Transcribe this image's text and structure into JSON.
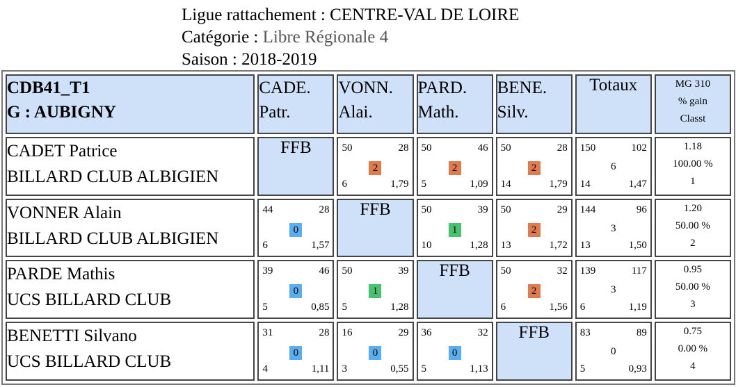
{
  "header": {
    "ligue_label": "Ligue rattachement : ",
    "ligue_value": "CENTRE-VAL DE LOIRE",
    "categorie_label": "Catégorie : ",
    "categorie_value": "Libre Régionale 4",
    "saison_label": "Saison : ",
    "saison_value": "2018-2019"
  },
  "table": {
    "title_line1": "CDB41_T1",
    "title_line2": "G : AUBIGNY",
    "opponents": [
      {
        "l1": "CADE.",
        "l2": "Patr."
      },
      {
        "l1": "VONN.",
        "l2": "Alai."
      },
      {
        "l1": "PARD.",
        "l2": "Math."
      },
      {
        "l1": "BENE.",
        "l2": "Silv."
      }
    ],
    "totals_label": "Totaux",
    "mg_label": [
      "MG 310",
      "% gain",
      "Classt"
    ],
    "ffb_label": "FFB",
    "colors": {
      "win": "#47c36f",
      "loss": "#e07b4e",
      "draw": "#5aaef0",
      "cell_blue": "#cfe0f9"
    },
    "rows": [
      {
        "name": "CADET Patrice",
        "club": "BILLARD CLUB ALBIGIEN",
        "matches": [
          null,
          {
            "tl": "50",
            "tr": "28",
            "pts": "2",
            "color": "#e07b4e",
            "bl": "6",
            "br": "1,79"
          },
          {
            "tl": "50",
            "tr": "46",
            "pts": "2",
            "color": "#e07b4e",
            "bl": "5",
            "br": "1,09"
          },
          {
            "tl": "50",
            "tr": "28",
            "pts": "2",
            "color": "#e07b4e",
            "bl": "14",
            "br": "1,79"
          }
        ],
        "totals": {
          "tl": "150",
          "tr": "102",
          "mid": "6",
          "bl": "14",
          "br": "1,47"
        },
        "mg": [
          "1.18",
          "100.00 %",
          "1"
        ]
      },
      {
        "name": "VONNER Alain",
        "club": "BILLARD CLUB ALBIGIEN",
        "matches": [
          {
            "tl": "44",
            "tr": "28",
            "pts": "0",
            "color": "#5aaef0",
            "bl": "6",
            "br": "1,57"
          },
          null,
          {
            "tl": "50",
            "tr": "39",
            "pts": "1",
            "color": "#47c36f",
            "bl": "10",
            "br": "1,28"
          },
          {
            "tl": "50",
            "tr": "29",
            "pts": "2",
            "color": "#e07b4e",
            "bl": "13",
            "br": "1,72"
          }
        ],
        "totals": {
          "tl": "144",
          "tr": "96",
          "mid": "3",
          "bl": "13",
          "br": "1,50"
        },
        "mg": [
          "1.20",
          "50.00 %",
          "2"
        ]
      },
      {
        "name": "PARDE Mathis",
        "club": "UCS BILLARD CLUB",
        "matches": [
          {
            "tl": "39",
            "tr": "46",
            "pts": "0",
            "color": "#5aaef0",
            "bl": "5",
            "br": "0,85"
          },
          {
            "tl": "50",
            "tr": "39",
            "pts": "1",
            "color": "#47c36f",
            "bl": "5",
            "br": "1,28"
          },
          null,
          {
            "tl": "50",
            "tr": "32",
            "pts": "2",
            "color": "#e07b4e",
            "bl": "6",
            "br": "1,56"
          }
        ],
        "totals": {
          "tl": "139",
          "tr": "117",
          "mid": "3",
          "bl": "6",
          "br": "1,19"
        },
        "mg": [
          "0.95",
          "50.00 %",
          "3"
        ]
      },
      {
        "name": "BENETTI Silvano",
        "club": "UCS BILLARD CLUB",
        "matches": [
          {
            "tl": "31",
            "tr": "28",
            "pts": "0",
            "color": "#5aaef0",
            "bl": "4",
            "br": "1,11"
          },
          {
            "tl": "16",
            "tr": "29",
            "pts": "0",
            "color": "#5aaef0",
            "bl": "3",
            "br": "0,55"
          },
          {
            "tl": "36",
            "tr": "32",
            "pts": "0",
            "color": "#5aaef0",
            "bl": "5",
            "br": "1,13"
          },
          null
        ],
        "totals": {
          "tl": "83",
          "tr": "89",
          "mid": "0",
          "bl": "5",
          "br": "0,93"
        },
        "mg": [
          "0.75",
          "0.00 %",
          "4"
        ]
      }
    ]
  }
}
